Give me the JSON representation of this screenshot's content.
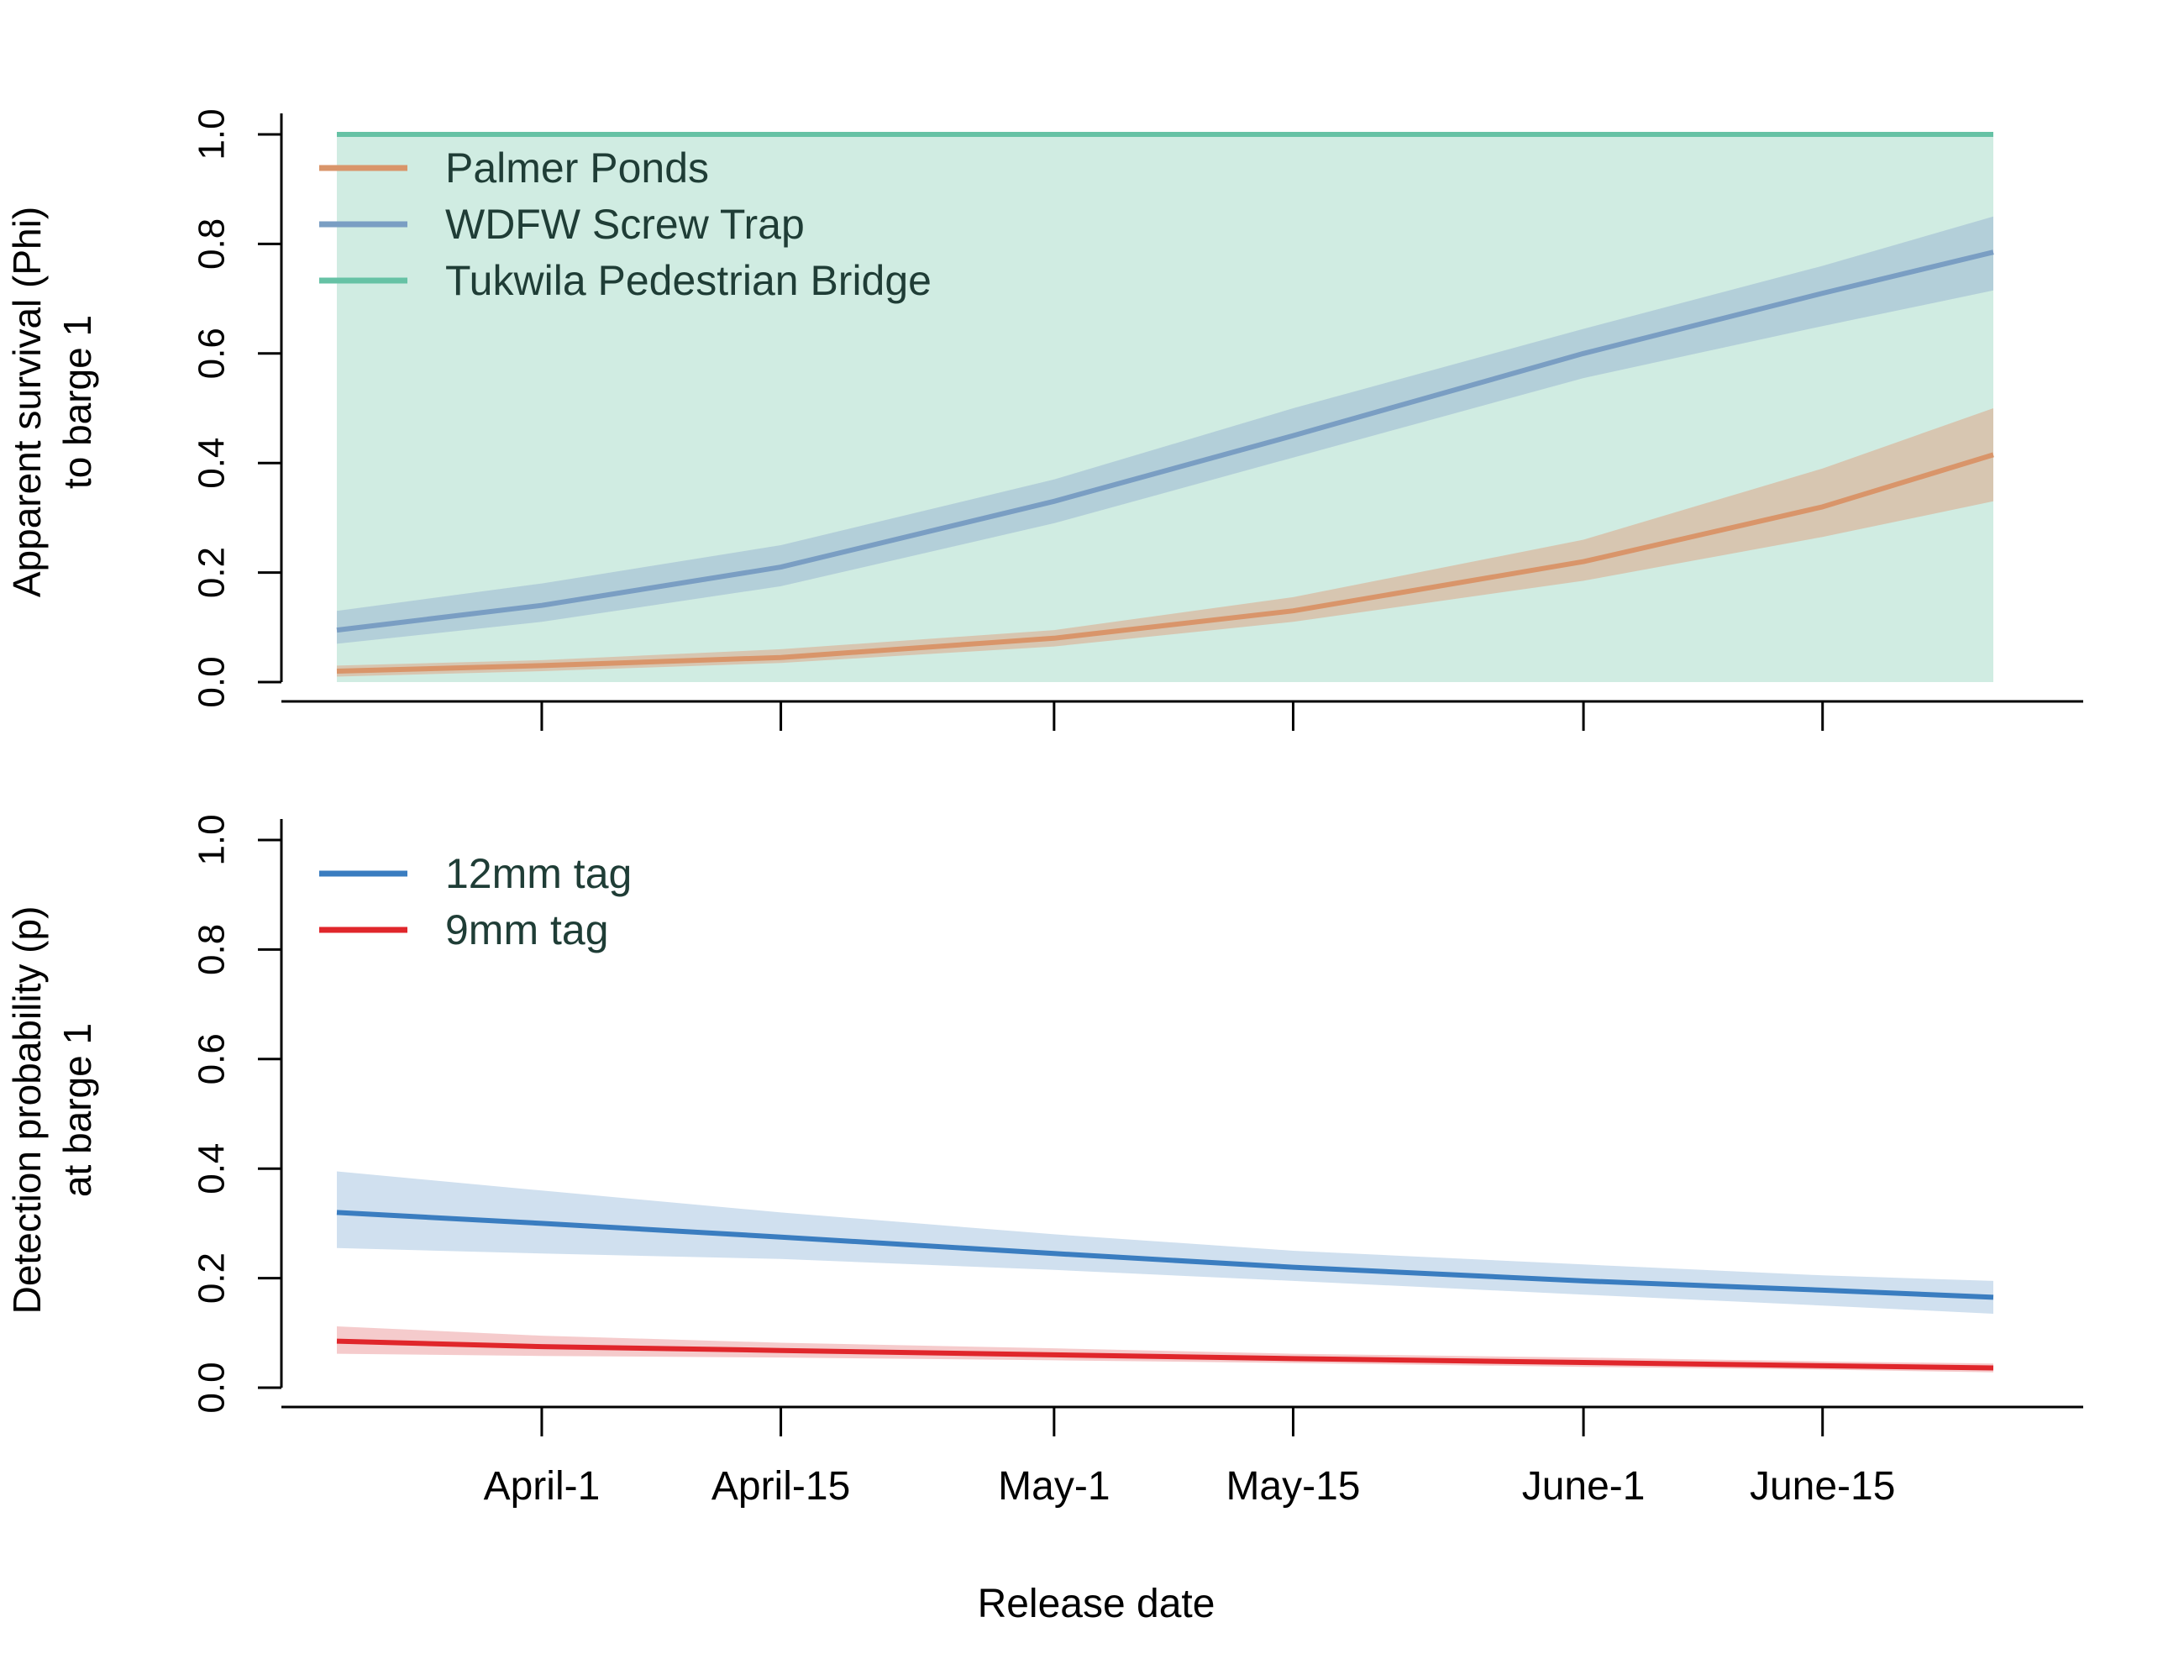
{
  "chart_data": [
    {
      "type": "line",
      "ylabel_lines": [
        "Apparent survival (Phi)",
        "to barge 1"
      ],
      "ylim": [
        0,
        1
      ],
      "yticks": [
        0.0,
        0.2,
        0.4,
        0.6,
        0.8,
        1.0
      ],
      "ytick_labels": [
        "0.0",
        "0.2",
        "0.4",
        "0.6",
        "0.8",
        "1.0"
      ],
      "xlim": [
        "2023-03-17",
        "2023-07-01"
      ],
      "xticks": [
        "2023-04-01",
        "2023-04-15",
        "2023-05-01",
        "2023-05-15",
        "2023-06-01",
        "2023-06-15"
      ],
      "tick_labels_shown": false,
      "legend_position": "top-left",
      "grid": false,
      "series": [
        {
          "name": "Palmer Ponds",
          "color": "#d9956a",
          "band_color": "#d9b9a0",
          "x": [
            "2023-03-20",
            "2023-04-01",
            "2023-04-15",
            "2023-05-01",
            "2023-05-15",
            "2023-06-01",
            "2023-06-15",
            "2023-06-25"
          ],
          "y": [
            0.02,
            0.03,
            0.045,
            0.08,
            0.13,
            0.22,
            0.32,
            0.415
          ],
          "lower": [
            0.01,
            0.02,
            0.035,
            0.065,
            0.11,
            0.185,
            0.265,
            0.33
          ],
          "upper": [
            0.03,
            0.04,
            0.06,
            0.095,
            0.155,
            0.26,
            0.39,
            0.5
          ]
        },
        {
          "name": "WDFW Screw Trap",
          "color": "#7a9ec3",
          "band_color": "#a9c6d6",
          "x": [
            "2023-03-20",
            "2023-04-01",
            "2023-04-15",
            "2023-05-01",
            "2023-05-15",
            "2023-06-01",
            "2023-06-15",
            "2023-06-25"
          ],
          "y": [
            0.095,
            0.14,
            0.21,
            0.33,
            0.45,
            0.6,
            0.71,
            0.785
          ],
          "lower": [
            0.07,
            0.11,
            0.175,
            0.29,
            0.41,
            0.555,
            0.65,
            0.715
          ],
          "upper": [
            0.13,
            0.18,
            0.25,
            0.37,
            0.5,
            0.645,
            0.76,
            0.85
          ]
        },
        {
          "name": "Tukwila Pedestrian Bridge",
          "color": "#66c2a5",
          "band_color": "#d0ece2",
          "x": [
            "2023-03-20",
            "2023-06-25"
          ],
          "y": [
            1.0,
            1.0
          ],
          "lower": [
            0.0,
            0.0
          ],
          "upper": [
            1.0,
            1.0
          ]
        }
      ]
    },
    {
      "type": "line",
      "ylabel_lines": [
        "Detection probability (p)",
        "at barge 1"
      ],
      "xlabel": "Release date",
      "ylim": [
        0,
        1
      ],
      "yticks": [
        0.0,
        0.2,
        0.4,
        0.6,
        0.8,
        1.0
      ],
      "ytick_labels": [
        "0.0",
        "0.2",
        "0.4",
        "0.6",
        "0.8",
        "1.0"
      ],
      "xlim": [
        "2023-03-17",
        "2023-07-01"
      ],
      "xticks": [
        "2023-04-01",
        "2023-04-15",
        "2023-05-01",
        "2023-05-15",
        "2023-06-01",
        "2023-06-15"
      ],
      "xtick_labels": [
        "April-1",
        "April-15",
        "May-1",
        "May-15",
        "June-1",
        "June-15"
      ],
      "tick_labels_shown": true,
      "legend_position": "top-left",
      "grid": false,
      "series": [
        {
          "name": "12mm tag",
          "color": "#3a7dc0",
          "band_color": "#c0d6ea",
          "x": [
            "2023-03-20",
            "2023-04-01",
            "2023-04-15",
            "2023-05-01",
            "2023-05-15",
            "2023-06-01",
            "2023-06-15",
            "2023-06-25"
          ],
          "y": [
            0.32,
            0.3,
            0.275,
            0.245,
            0.22,
            0.195,
            0.178,
            0.165
          ],
          "lower": [
            0.255,
            0.245,
            0.235,
            0.215,
            0.195,
            0.17,
            0.15,
            0.135
          ],
          "upper": [
            0.395,
            0.36,
            0.32,
            0.28,
            0.25,
            0.225,
            0.205,
            0.195
          ]
        },
        {
          "name": "9mm tag",
          "color": "#e0262b",
          "band_color": "#f2b9bb",
          "x": [
            "2023-03-20",
            "2023-04-01",
            "2023-04-15",
            "2023-05-01",
            "2023-05-15",
            "2023-06-01",
            "2023-06-15",
            "2023-06-25"
          ],
          "y": [
            0.085,
            0.075,
            0.068,
            0.06,
            0.053,
            0.046,
            0.04,
            0.036
          ],
          "lower": [
            0.062,
            0.058,
            0.055,
            0.05,
            0.045,
            0.038,
            0.033,
            0.028
          ],
          "upper": [
            0.112,
            0.095,
            0.082,
            0.072,
            0.062,
            0.055,
            0.048,
            0.044
          ]
        }
      ]
    }
  ]
}
